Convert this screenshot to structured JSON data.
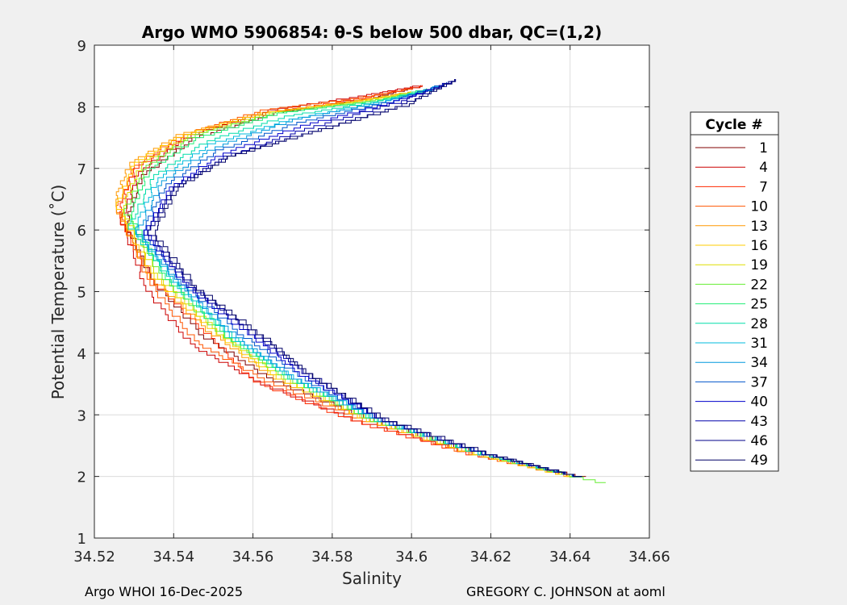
{
  "chart_data": {
    "type": "line",
    "title": "Argo WMO 5906854: θ-S below 500 dbar,  QC=(1,2)",
    "xlabel": "Salinity",
    "ylabel": "Potential Temperature (˚C)",
    "xlim": [
      34.52,
      34.66
    ],
    "ylim": [
      1,
      9
    ],
    "xticks": [
      "34.52",
      "34.54",
      "34.56",
      "34.58",
      "34.6",
      "34.62",
      "34.64",
      "34.66"
    ],
    "yticks": [
      "1",
      "2",
      "3",
      "4",
      "5",
      "6",
      "7",
      "8",
      "9"
    ],
    "grid": true,
    "legend": {
      "title": "Cycle #",
      "placement": "outside-right",
      "entries": [
        "1",
        "4",
        "7",
        "10",
        "13",
        "16",
        "19",
        "22",
        "25",
        "28",
        "31",
        "34",
        "37",
        "40",
        "43",
        "46",
        "49"
      ],
      "colors": [
        "#800000",
        "#cc0000",
        "#ff2a00",
        "#ff5500",
        "#ff9900",
        "#ffcc00",
        "#dddd00",
        "#66ee33",
        "#22ee77",
        "#00ddaa",
        "#00bbdd",
        "#0099dd",
        "#0055cc",
        "#0000cc",
        "#0000aa",
        "#000088",
        "#000066"
      ]
    },
    "series": [
      {
        "name": "1",
        "color": "#800000",
        "x": [
          34.644,
          34.62,
          34.59,
          34.565,
          34.548,
          34.535,
          34.528,
          34.532,
          34.545,
          34.565,
          34.59,
          34.603
        ],
        "y": [
          2.0,
          2.35,
          2.95,
          3.6,
          4.3,
          5.2,
          6.15,
          6.9,
          7.5,
          7.9,
          8.15,
          8.35
        ]
      },
      {
        "name": "4",
        "color": "#cc0000",
        "x": [
          34.643,
          34.618,
          34.588,
          34.562,
          34.545,
          34.533,
          34.527,
          34.531,
          34.544,
          34.564,
          34.589,
          34.602
        ],
        "y": [
          2.0,
          2.35,
          2.9,
          3.55,
          4.15,
          5.1,
          6.2,
          6.95,
          7.55,
          7.95,
          8.2,
          8.35
        ]
      },
      {
        "name": "7",
        "color": "#ff2a00",
        "x": [
          34.642,
          34.617,
          34.587,
          34.56,
          34.548,
          34.535,
          34.526,
          34.53,
          34.543,
          34.563,
          34.588,
          34.603
        ],
        "y": [
          2.0,
          2.35,
          2.9,
          3.6,
          4.4,
          5.2,
          6.3,
          7.0,
          7.55,
          7.9,
          8.15,
          8.35
        ]
      },
      {
        "name": "10",
        "color": "#ff5500",
        "x": [
          34.642,
          34.617,
          34.588,
          34.563,
          34.546,
          34.534,
          34.526,
          34.53,
          34.542,
          34.562,
          34.587,
          34.6
        ],
        "y": [
          2.0,
          2.35,
          2.95,
          3.6,
          4.2,
          5.2,
          6.4,
          7.05,
          7.55,
          7.95,
          8.15,
          8.3
        ]
      },
      {
        "name": "13",
        "color": "#ff9900",
        "x": [
          34.641,
          34.618,
          34.589,
          34.565,
          34.55,
          34.534,
          34.525,
          34.529,
          34.541,
          34.561,
          34.586,
          34.6
        ],
        "y": [
          2.0,
          2.35,
          2.95,
          3.65,
          4.35,
          5.3,
          6.5,
          7.1,
          7.55,
          7.9,
          8.1,
          8.25
        ]
      },
      {
        "name": "16",
        "color": "#ffcc00",
        "x": [
          34.641,
          34.618,
          34.589,
          34.566,
          34.552,
          34.535,
          34.526,
          34.53,
          34.542,
          34.562,
          34.586,
          34.598
        ],
        "y": [
          2.0,
          2.35,
          2.95,
          3.65,
          4.3,
          5.3,
          6.45,
          7.1,
          7.55,
          7.9,
          8.1,
          8.2
        ]
      },
      {
        "name": "19",
        "color": "#dddd00",
        "x": [
          34.642,
          34.619,
          34.59,
          34.567,
          34.553,
          34.536,
          34.527,
          34.532,
          34.544,
          34.564,
          34.588,
          34.6
        ],
        "y": [
          2.0,
          2.35,
          2.95,
          3.65,
          4.3,
          5.3,
          6.4,
          7.1,
          7.55,
          7.9,
          8.1,
          8.25
        ]
      },
      {
        "name": "22",
        "color": "#66ee33",
        "x": [
          34.649,
          34.62,
          34.59,
          34.568,
          34.554,
          34.537,
          34.528,
          34.533,
          34.545,
          34.565,
          34.59,
          34.603
        ],
        "y": [
          1.9,
          2.35,
          2.95,
          3.65,
          4.25,
          5.3,
          6.35,
          7.05,
          7.55,
          7.9,
          8.1,
          8.25
        ]
      },
      {
        "name": "25",
        "color": "#22ee77",
        "x": [
          34.643,
          34.62,
          34.591,
          34.569,
          34.555,
          34.538,
          34.529,
          34.534,
          34.546,
          34.566,
          34.591,
          34.604
        ],
        "y": [
          2.0,
          2.35,
          2.95,
          3.65,
          4.25,
          5.3,
          6.3,
          7.0,
          7.5,
          7.9,
          8.1,
          8.3
        ]
      },
      {
        "name": "28",
        "color": "#00ddaa",
        "x": [
          34.643,
          34.62,
          34.591,
          34.569,
          34.556,
          34.539,
          34.529,
          34.535,
          34.548,
          34.568,
          34.592,
          34.605
        ],
        "y": [
          2.0,
          2.35,
          2.95,
          3.65,
          4.25,
          5.25,
          6.1,
          6.9,
          7.45,
          7.85,
          8.1,
          8.3
        ]
      },
      {
        "name": "31",
        "color": "#00bbdd",
        "x": [
          34.643,
          34.62,
          34.592,
          34.57,
          34.556,
          34.54,
          34.53,
          34.536,
          34.549,
          34.569,
          34.593,
          34.606
        ],
        "y": [
          2.0,
          2.35,
          2.95,
          3.65,
          4.25,
          5.25,
          6.05,
          6.85,
          7.4,
          7.8,
          8.1,
          8.3
        ]
      },
      {
        "name": "34",
        "color": "#0099dd",
        "x": [
          34.643,
          34.621,
          34.592,
          34.57,
          34.557,
          34.541,
          34.531,
          34.537,
          34.55,
          34.57,
          34.594,
          34.607
        ],
        "y": [
          2.0,
          2.35,
          2.95,
          3.65,
          4.25,
          5.2,
          6.0,
          6.8,
          7.35,
          7.8,
          8.1,
          8.35
        ]
      },
      {
        "name": "37",
        "color": "#0055cc",
        "x": [
          34.643,
          34.621,
          34.592,
          34.571,
          34.558,
          34.542,
          34.532,
          34.538,
          34.551,
          34.571,
          34.595,
          34.609
        ],
        "y": [
          2.0,
          2.35,
          2.95,
          3.7,
          4.3,
          5.2,
          6.0,
          6.75,
          7.3,
          7.75,
          8.1,
          8.4
        ]
      },
      {
        "name": "40",
        "color": "#0000cc",
        "x": [
          34.643,
          34.621,
          34.593,
          34.572,
          34.56,
          34.543,
          34.533,
          34.539,
          34.552,
          34.572,
          34.596,
          34.61
        ],
        "y": [
          2.0,
          2.35,
          2.95,
          3.7,
          4.3,
          5.15,
          6.0,
          6.7,
          7.25,
          7.7,
          8.1,
          8.4
        ]
      },
      {
        "name": "43",
        "color": "#0000aa",
        "x": [
          34.643,
          34.621,
          34.593,
          34.572,
          34.561,
          34.544,
          34.533,
          34.54,
          34.553,
          34.573,
          34.597,
          34.611
        ],
        "y": [
          2.0,
          2.35,
          2.95,
          3.75,
          4.3,
          5.15,
          6.0,
          6.7,
          7.2,
          7.65,
          8.1,
          8.45
        ]
      },
      {
        "name": "46",
        "color": "#000088",
        "x": [
          34.643,
          34.621,
          34.593,
          34.573,
          34.562,
          34.545,
          34.534,
          34.54,
          34.553,
          34.574,
          34.598,
          34.611
        ],
        "y": [
          2.0,
          2.35,
          2.95,
          3.75,
          4.3,
          5.1,
          6.0,
          6.7,
          7.2,
          7.6,
          8.05,
          8.45
        ]
      },
      {
        "name": "49",
        "color": "#000066",
        "x": [
          34.643,
          34.622,
          34.594,
          34.573,
          34.563,
          34.546,
          34.535,
          34.541,
          34.554,
          34.575,
          34.599,
          34.611
        ],
        "y": [
          2.0,
          2.35,
          2.95,
          3.75,
          4.3,
          5.1,
          6.0,
          6.7,
          7.2,
          7.6,
          8.05,
          8.45
        ]
      }
    ]
  },
  "footer": {
    "left": "Argo WHOI 16-Dec-2025",
    "right": "GREGORY C. JOHNSON at aoml"
  }
}
